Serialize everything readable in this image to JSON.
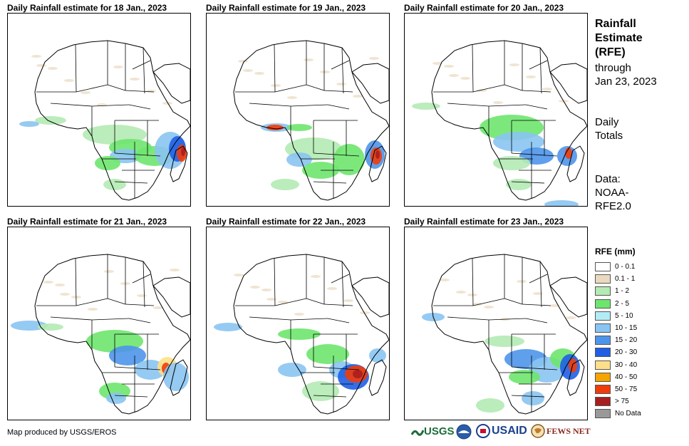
{
  "panels": [
    {
      "title": "Daily Rainfall estimate for 18 Jan., 2023"
    },
    {
      "title": "Daily Rainfall estimate for 19 Jan., 2023"
    },
    {
      "title": "Daily Rainfall estimate for 20 Jan., 2023"
    },
    {
      "title": "Daily Rainfall estimate for 21 Jan., 2023"
    },
    {
      "title": "Daily Rainfall estimate for 22 Jan., 2023"
    },
    {
      "title": "Daily Rainfall estimate for 23 Jan., 2023"
    }
  ],
  "sidebar": {
    "title_lines": [
      "Rainfall",
      "Estimate",
      "(RFE)"
    ],
    "through_lines": [
      "through",
      "Jan 23, 2023"
    ],
    "totals_lines": [
      "Daily",
      "Totals"
    ],
    "data_lines": [
      "Data:",
      "NOAA-",
      "RFE2.0"
    ]
  },
  "legend": {
    "title": "RFE (mm)",
    "items": [
      {
        "label": "0 - 0.1",
        "color": "#ffffff"
      },
      {
        "label": "0.1 - 1",
        "color": "#ead9bf"
      },
      {
        "label": "1 - 2",
        "color": "#b4eab4"
      },
      {
        "label": "2 - 5",
        "color": "#6ee66e"
      },
      {
        "label": "5 - 10",
        "color": "#b4ecf5"
      },
      {
        "label": "10 - 15",
        "color": "#8ac4f2"
      },
      {
        "label": "15 - 20",
        "color": "#4e95ea"
      },
      {
        "label": "20 - 30",
        "color": "#1f5fe6"
      },
      {
        "label": "30 - 40",
        "color": "#ffe08a"
      },
      {
        "label": "40 - 50",
        "color": "#f5a400"
      },
      {
        "label": "50 - 75",
        "color": "#f03c0a"
      },
      {
        "label": "> 75",
        "color": "#a81e1e"
      },
      {
        "label": "No Data",
        "color": "#999999"
      }
    ]
  },
  "footer": {
    "credit": "Map produced by USGS/EROS",
    "logos": {
      "usgs": "USGS",
      "usaid": "USAID",
      "fewsnet": "FEWS NET"
    }
  },
  "colors": {
    "land_outline": "#000000",
    "background": "#ffffff"
  }
}
